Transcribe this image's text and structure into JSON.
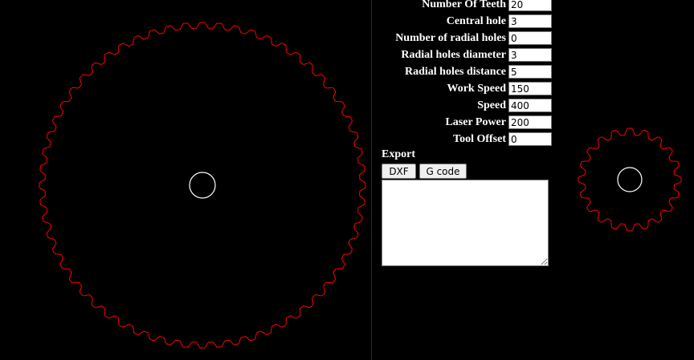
{
  "colors": {
    "background": "#000000",
    "gear_outline": "#ff0000",
    "hole_outline": "#ffffff"
  },
  "parameters": [
    {
      "label": "Number Of Teeth",
      "value": "20"
    },
    {
      "label": "Central hole",
      "value": "3"
    },
    {
      "label": "Number of radial holes",
      "value": "0"
    },
    {
      "label": "Radial holes diameter",
      "value": "3"
    },
    {
      "label": "Radial holes distance",
      "value": "5"
    },
    {
      "label": "Work Speed",
      "value": "150"
    },
    {
      "label": "Speed",
      "value": "400"
    },
    {
      "label": "Laser Power",
      "value": "200"
    },
    {
      "label": "Tool Offset",
      "value": "0"
    }
  ],
  "export": {
    "title": "Export",
    "dxf_label": "DXF",
    "gcode_label": "G code",
    "output": ""
  },
  "gears": {
    "large": {
      "teeth": 60
    },
    "small": {
      "teeth": 20
    }
  }
}
